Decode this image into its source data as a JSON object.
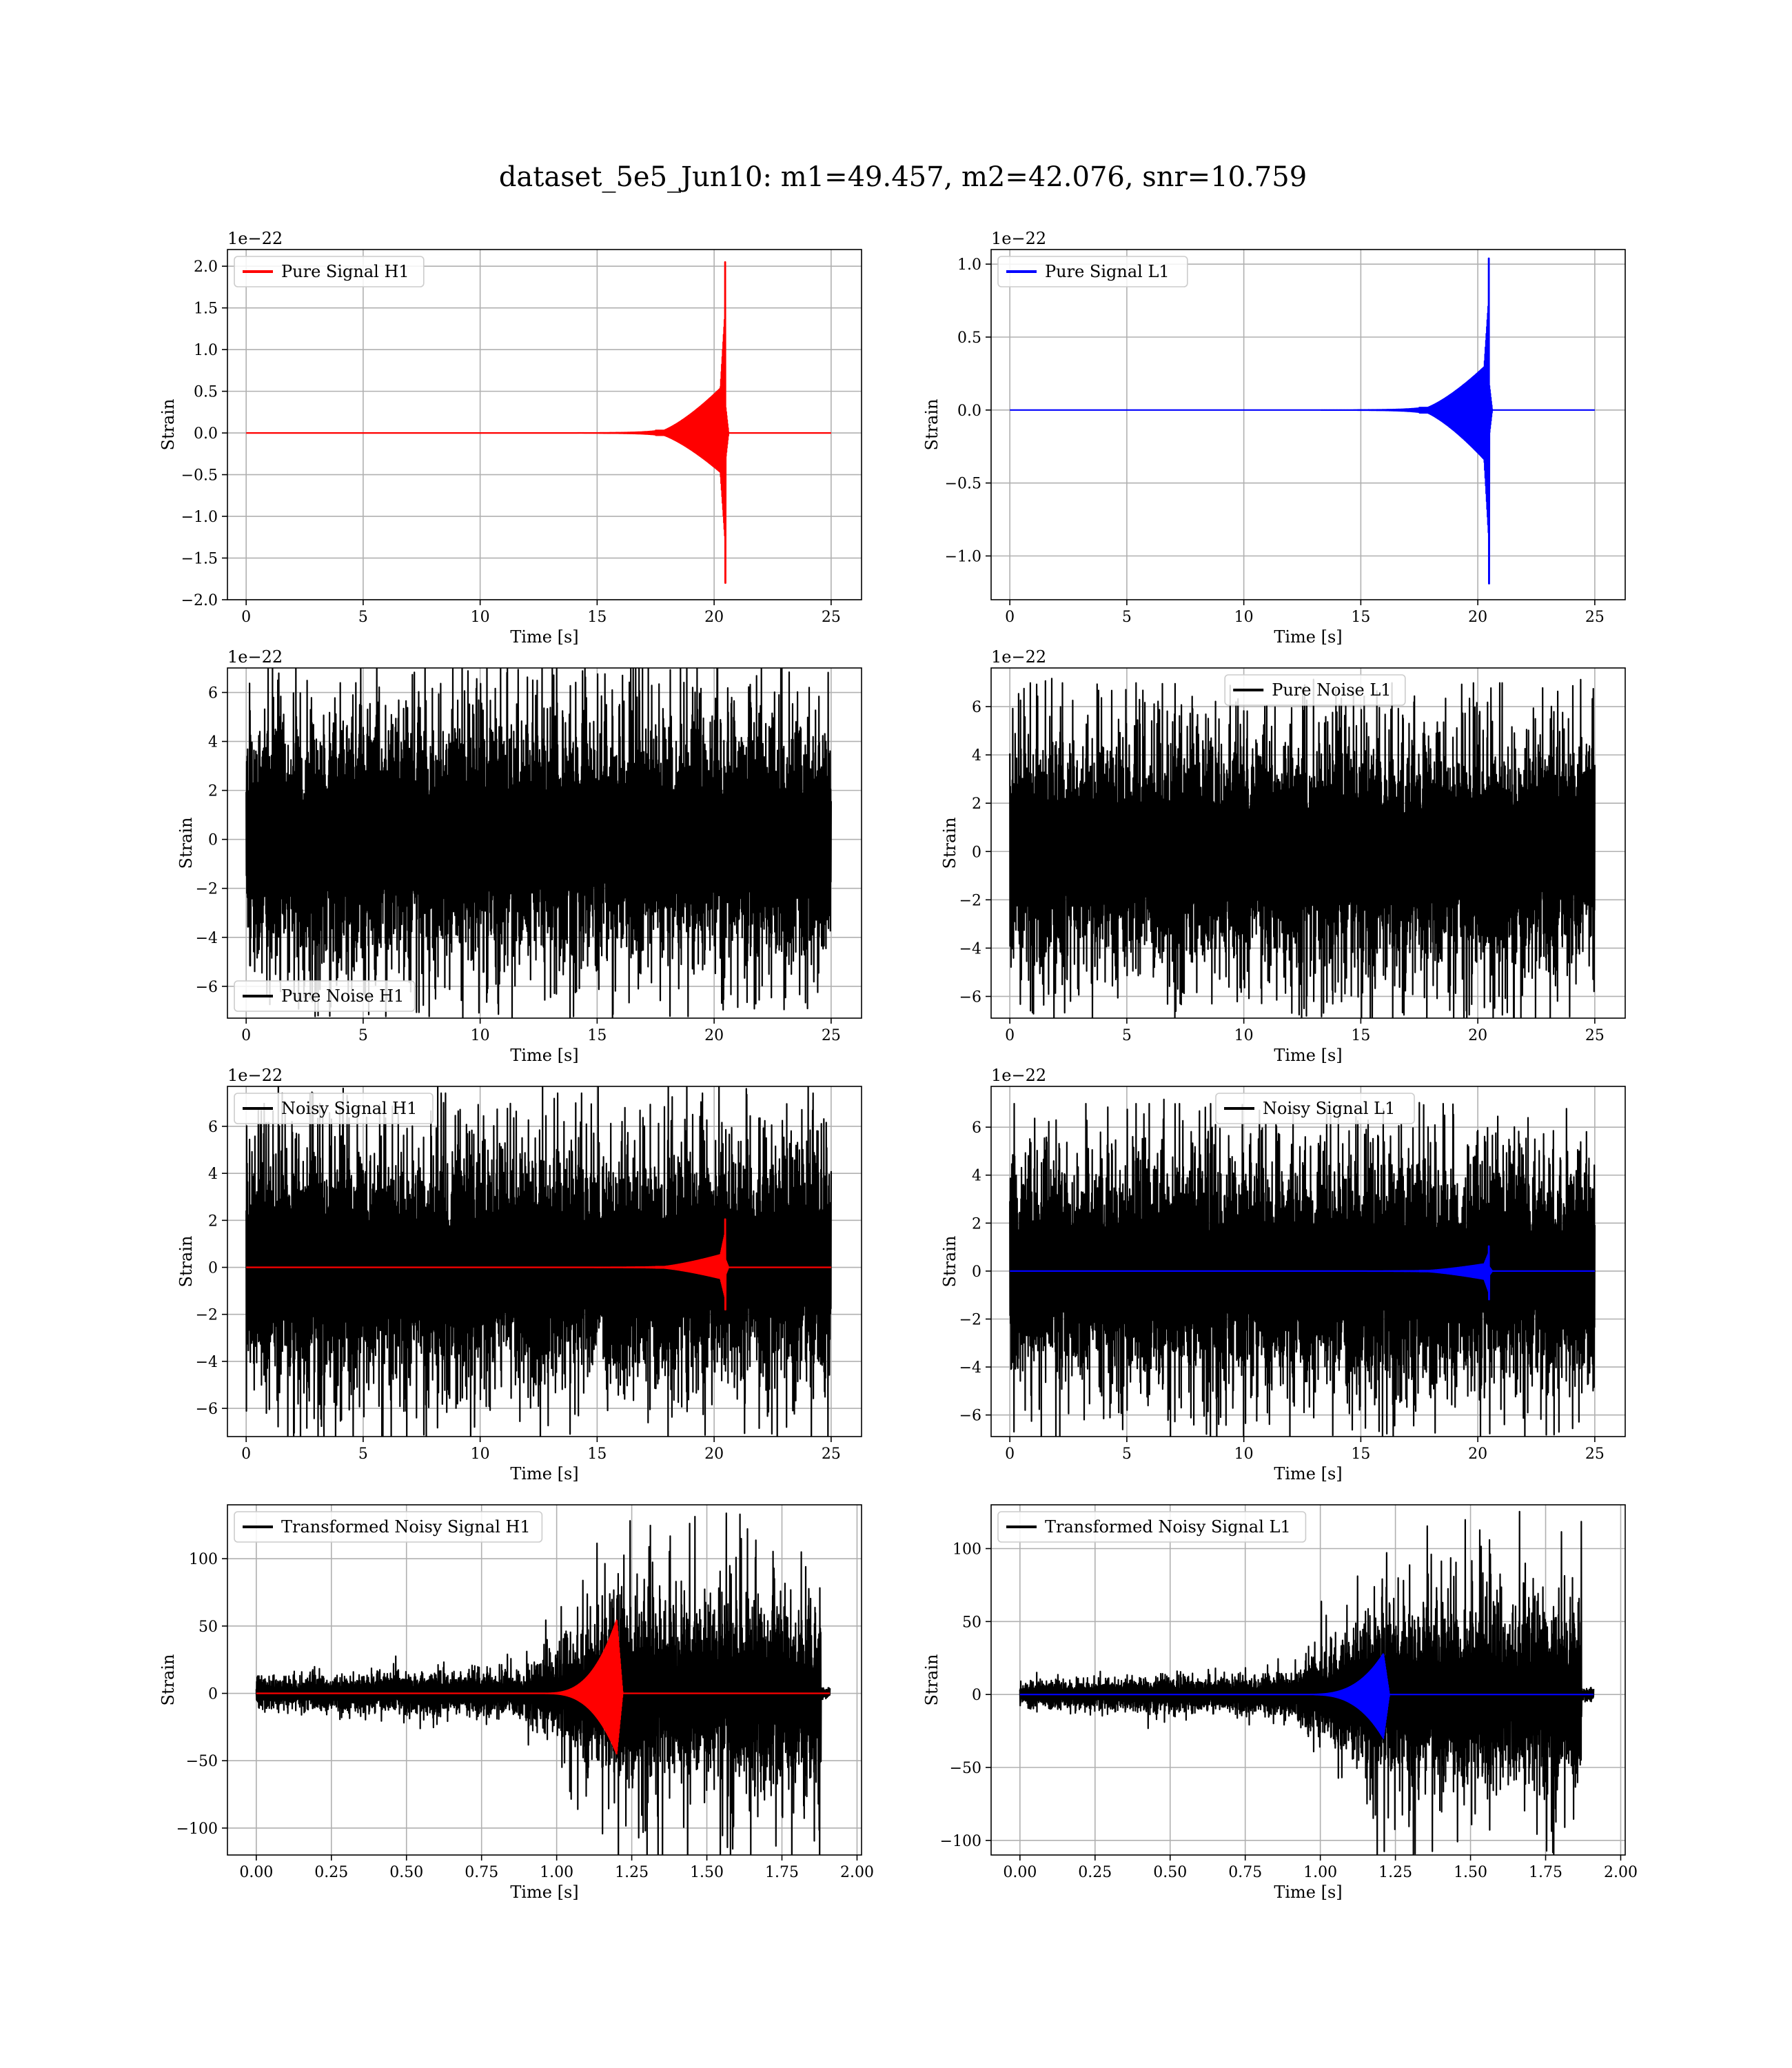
{
  "figure": {
    "title": "dataset_5e5_Jun10: m1=49.457, m2=42.076, snr=10.759"
  },
  "colors": {
    "h1_signal": "#ff0000",
    "l1_signal": "#0000ff",
    "noise": "#000000",
    "grid": "#b0b0b0"
  },
  "chart_data": [
    {
      "id": "pure-signal-h1",
      "type": "line",
      "xlabel": "Time [s]",
      "ylabel": "Strain",
      "offset_text": "1e−22",
      "xlim": [
        -0.8,
        26.3
      ],
      "ylim": [
        -2.0,
        2.2
      ],
      "xticks": [
        0,
        5,
        10,
        15,
        20,
        25
      ],
      "xtick_labels": [
        "0",
        "5",
        "10",
        "15",
        "20",
        "25"
      ],
      "yticks": [
        -2.0,
        -1.5,
        -1.0,
        -0.5,
        0.0,
        0.5,
        1.0,
        1.5,
        2.0
      ],
      "ytick_labels": [
        "−2.0",
        "−1.5",
        "−1.0",
        "−0.5",
        "0.0",
        "0.5",
        "1.0",
        "1.5",
        "2.0"
      ],
      "grid": true,
      "legend_position": "upper-left",
      "series": [
        {
          "name": "Pure Signal H1",
          "color": "#ff0000",
          "kind": "chirp",
          "x_range": [
            0,
            25
          ],
          "merger_time": 20.5,
          "peak_max": 2.05,
          "peak_min": -1.8,
          "plateau": 0.6,
          "onset": 17.5
        }
      ]
    },
    {
      "id": "pure-signal-l1",
      "type": "line",
      "xlabel": "Time [s]",
      "ylabel": "Strain",
      "offset_text": "1e−22",
      "xlim": [
        -0.8,
        26.3
      ],
      "ylim": [
        -1.3,
        1.1
      ],
      "xticks": [
        0,
        5,
        10,
        15,
        20,
        25
      ],
      "xtick_labels": [
        "0",
        "5",
        "10",
        "15",
        "20",
        "25"
      ],
      "yticks": [
        -1.0,
        -0.5,
        0.0,
        0.5,
        1.0
      ],
      "ytick_labels": [
        "−1.0",
        "−0.5",
        "0.0",
        "0.5",
        "1.0"
      ],
      "grid": true,
      "legend_position": "upper-left",
      "series": [
        {
          "name": "Pure Signal L1",
          "color": "#0000ff",
          "kind": "chirp",
          "x_range": [
            0,
            25
          ],
          "merger_time": 20.5,
          "peak_max": 1.04,
          "peak_min": -1.19,
          "plateau": 0.33,
          "onset": 17.5
        }
      ]
    },
    {
      "id": "pure-noise-h1",
      "type": "line",
      "xlabel": "Time [s]",
      "ylabel": "Strain",
      "offset_text": "1e−22",
      "xlim": [
        -0.8,
        26.3
      ],
      "ylim": [
        -7.3,
        7.0
      ],
      "xticks": [
        0,
        5,
        10,
        15,
        20,
        25
      ],
      "xtick_labels": [
        "0",
        "5",
        "10",
        "15",
        "20",
        "25"
      ],
      "yticks": [
        -6,
        -4,
        -2,
        0,
        2,
        4,
        6
      ],
      "ytick_labels": [
        "−6",
        "−4",
        "−2",
        "0",
        "2",
        "4",
        "6"
      ],
      "grid": true,
      "legend_position": "lower-left",
      "series": [
        {
          "name": "Pure Noise H1",
          "color": "#000000",
          "kind": "noise",
          "x_range": [
            0,
            25
          ],
          "max": 6.4,
          "min": -6.6,
          "band": 4.2
        }
      ]
    },
    {
      "id": "pure-noise-l1",
      "type": "line",
      "xlabel": "Time [s]",
      "ylabel": "Strain",
      "offset_text": "1e−22",
      "xlim": [
        -0.8,
        26.3
      ],
      "ylim": [
        -6.9,
        7.6
      ],
      "xticks": [
        0,
        5,
        10,
        15,
        20,
        25
      ],
      "xtick_labels": [
        "0",
        "5",
        "10",
        "15",
        "20",
        "25"
      ],
      "yticks": [
        -6,
        -4,
        -2,
        0,
        2,
        4,
        6
      ],
      "ytick_labels": [
        "−6",
        "−4",
        "−2",
        "0",
        "2",
        "4",
        "6"
      ],
      "grid": true,
      "legend_position": "upper-center",
      "series": [
        {
          "name": "Pure Noise L1",
          "color": "#000000",
          "kind": "noise",
          "x_range": [
            0,
            25
          ],
          "max": 6.4,
          "min": -6.2,
          "band": 4.0
        }
      ]
    },
    {
      "id": "noisy-signal-h1",
      "type": "line",
      "xlabel": "Time [s]",
      "ylabel": "Strain",
      "offset_text": "1e−22",
      "xlim": [
        -0.8,
        26.3
      ],
      "ylim": [
        -7.2,
        7.7
      ],
      "xticks": [
        0,
        5,
        10,
        15,
        20,
        25
      ],
      "xtick_labels": [
        "0",
        "5",
        "10",
        "15",
        "20",
        "25"
      ],
      "yticks": [
        -6,
        -4,
        -2,
        0,
        2,
        4,
        6
      ],
      "ytick_labels": [
        "−6",
        "−4",
        "−2",
        "0",
        "2",
        "4",
        "6"
      ],
      "grid": true,
      "legend_position": "upper-left",
      "series": [
        {
          "name": "Noisy Signal H1",
          "color": "#000000",
          "kind": "noise",
          "x_range": [
            0,
            25
          ],
          "max": 7.2,
          "min": -6.6,
          "band": 4.2
        },
        {
          "color": "#ff0000",
          "kind": "chirp",
          "x_range": [
            0,
            25
          ],
          "merger_time": 20.5,
          "peak_max": 2.05,
          "peak_min": -1.8,
          "plateau": 0.6,
          "onset": 17.5
        }
      ]
    },
    {
      "id": "noisy-signal-l1",
      "type": "line",
      "xlabel": "Time [s]",
      "ylabel": "Strain",
      "offset_text": "1e−22",
      "xlim": [
        -0.8,
        26.3
      ],
      "ylim": [
        -6.9,
        7.7
      ],
      "xticks": [
        0,
        5,
        10,
        15,
        20,
        25
      ],
      "xtick_labels": [
        "0",
        "5",
        "10",
        "15",
        "20",
        "25"
      ],
      "yticks": [
        -6,
        -4,
        -2,
        0,
        2,
        4,
        6
      ],
      "ytick_labels": [
        "−6",
        "−4",
        "−2",
        "0",
        "2",
        "4",
        "6"
      ],
      "grid": true,
      "legend_position": "upper-center",
      "series": [
        {
          "name": "Noisy Signal L1",
          "color": "#000000",
          "kind": "noise",
          "x_range": [
            0,
            25
          ],
          "max": 6.4,
          "min": -6.2,
          "band": 4.0
        },
        {
          "color": "#0000ff",
          "kind": "chirp",
          "x_range": [
            0,
            25
          ],
          "merger_time": 20.5,
          "peak_max": 1.04,
          "peak_min": -1.19,
          "plateau": 0.33,
          "onset": 17.5
        }
      ]
    },
    {
      "id": "transformed-noisy-signal-h1",
      "type": "line",
      "xlabel": "Time [s]",
      "ylabel": "Strain",
      "offset_text": "",
      "xlim": [
        -0.096,
        2.015
      ],
      "ylim": [
        -120,
        140
      ],
      "xticks": [
        0.0,
        0.25,
        0.5,
        0.75,
        1.0,
        1.25,
        1.5,
        1.75,
        2.0
      ],
      "xtick_labels": [
        "0.00",
        "0.25",
        "0.50",
        "0.75",
        "1.00",
        "1.25",
        "1.50",
        "1.75",
        "2.00"
      ],
      "yticks": [
        -100,
        -50,
        0,
        50,
        100
      ],
      "ytick_labels": [
        "−100",
        "−50",
        "0",
        "50",
        "100"
      ],
      "grid": true,
      "legend_position": "upper-left",
      "series": [
        {
          "name": "Transformed Noisy Signal H1",
          "color": "#000000",
          "kind": "transformed-noise",
          "x_range": [
            0,
            1.91
          ],
          "max": 126,
          "min": -118,
          "early_band": 10,
          "late_band": 60,
          "growth_start": 0.9,
          "growth_end": 1.2,
          "end_time": 1.88
        },
        {
          "color": "#ff0000",
          "kind": "transformed-chirp",
          "x_range": [
            0,
            1.91
          ],
          "merger_time": 1.2,
          "peak_max": 55,
          "peak_min": -45,
          "onset": 0.95
        }
      ]
    },
    {
      "id": "transformed-noisy-signal-l1",
      "type": "line",
      "xlabel": "Time [s]",
      "ylabel": "Strain",
      "offset_text": "",
      "xlim": [
        -0.096,
        2.015
      ],
      "ylim": [
        -110,
        130
      ],
      "xticks": [
        0.0,
        0.25,
        0.5,
        0.75,
        1.0,
        1.25,
        1.5,
        1.75,
        2.0
      ],
      "xtick_labels": [
        "0.00",
        "0.25",
        "0.50",
        "0.75",
        "1.00",
        "1.25",
        "1.50",
        "1.75",
        "2.00"
      ],
      "yticks": [
        -100,
        -50,
        0,
        50,
        100
      ],
      "ytick_labels": [
        "−100",
        "−50",
        "0",
        "50",
        "100"
      ],
      "grid": true,
      "legend_position": "upper-left",
      "series": [
        {
          "name": "Transformed Noisy Signal L1",
          "color": "#000000",
          "kind": "transformed-noise",
          "x_range": [
            0,
            1.91
          ],
          "max": 121,
          "min": -106,
          "early_band": 8,
          "late_band": 55,
          "growth_start": 0.9,
          "growth_end": 1.2,
          "end_time": 1.87
        },
        {
          "color": "#0000ff",
          "kind": "transformed-chirp",
          "x_range": [
            0,
            1.91
          ],
          "merger_time": 1.21,
          "peak_max": 28,
          "peak_min": -30,
          "onset": 0.95
        }
      ]
    }
  ]
}
